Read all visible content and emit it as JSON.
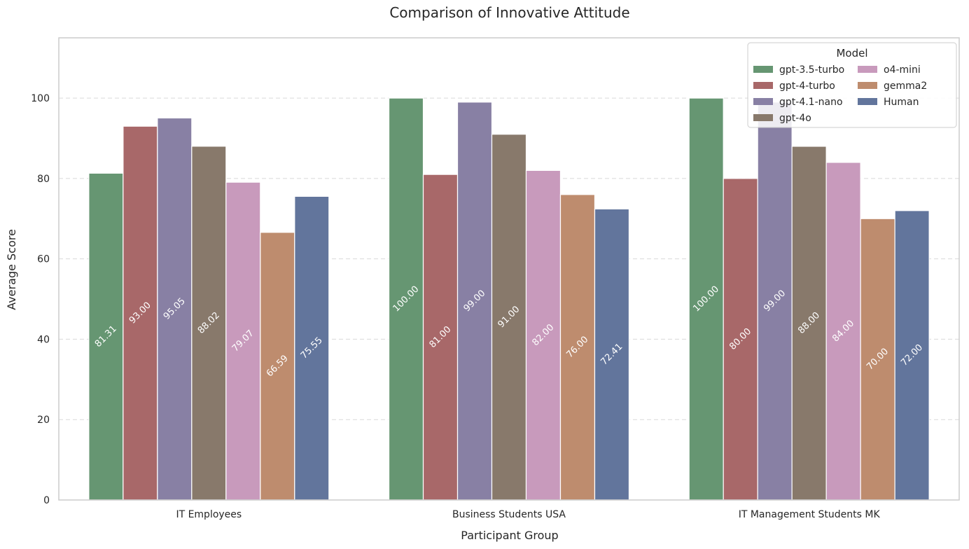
{
  "chart_data": {
    "type": "bar",
    "title": "Comparison of Innovative Attitude",
    "xlabel": "Participant Group",
    "ylabel": "Average Score",
    "ylim": [
      0,
      115
    ],
    "yticks": [
      "0",
      "20",
      "40",
      "60",
      "80",
      "100"
    ],
    "grid": "y-dashed",
    "legend": {
      "title": "Model",
      "placement": "top-right",
      "columns": 2
    },
    "categories": [
      "IT Employees",
      "Business Students USA",
      "IT Management Students MK"
    ],
    "series": [
      {
        "name": "gpt-3.5-turbo",
        "color": "#669672",
        "values": [
          81.31,
          100.0,
          100.0
        ],
        "labels": [
          "81.31",
          "100.00",
          "100.00"
        ]
      },
      {
        "name": "gpt-4-turbo",
        "color": "#a86869",
        "values": [
          93.0,
          81.0,
          80.0
        ],
        "labels": [
          "93.00",
          "81.00",
          "80.00"
        ]
      },
      {
        "name": "gpt-4.1-nano",
        "color": "#8880a4",
        "values": [
          95.05,
          99.0,
          99.0
        ],
        "labels": [
          "95.05",
          "99.00",
          "99.00"
        ]
      },
      {
        "name": "gpt-4o",
        "color": "#88796b",
        "values": [
          88.02,
          91.0,
          88.0
        ],
        "labels": [
          "88.02",
          "91.00",
          "88.00"
        ]
      },
      {
        "name": "o4-mini",
        "color": "#c89abc",
        "values": [
          79.07,
          82.0,
          84.0
        ],
        "labels": [
          "79.07",
          "82.00",
          "84.00"
        ]
      },
      {
        "name": "gemma2",
        "color": "#be8c6e",
        "values": [
          66.59,
          76.0,
          70.0
        ],
        "labels": [
          "66.59",
          "76.00",
          "70.00"
        ]
      },
      {
        "name": "Human",
        "color": "#62759c",
        "values": [
          75.55,
          72.41,
          72.0
        ],
        "labels": [
          "75.55",
          "72.41",
          "72.00"
        ]
      }
    ]
  }
}
